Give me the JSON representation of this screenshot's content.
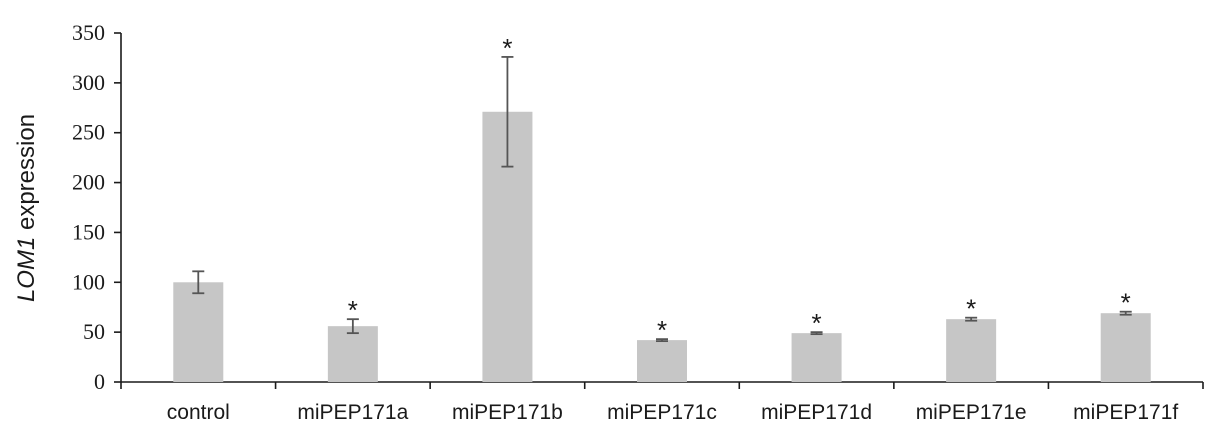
{
  "chart_data": {
    "type": "bar",
    "title": "",
    "xlabel": "",
    "ylabel_italic": "LOM1",
    "ylabel_rest": " expression",
    "ylim": [
      0,
      350
    ],
    "yticks": [
      0,
      50,
      100,
      150,
      200,
      250,
      300,
      350
    ],
    "grid": false,
    "categories": [
      "control",
      "miPEP171a",
      "miPEP171b",
      "miPEP171c",
      "miPEP171d",
      "miPEP171e",
      "miPEP171f"
    ],
    "values": [
      100,
      56,
      271,
      42,
      49,
      63,
      69
    ],
    "error": [
      11,
      7,
      55,
      1,
      1,
      1.5,
      1.5
    ],
    "significance": [
      "",
      "*",
      "*",
      "*",
      "*",
      "*",
      "*"
    ],
    "colors": {
      "bar": "#c6c6c6",
      "error_bar": "#555555",
      "axis": "#1a1a1a"
    }
  }
}
